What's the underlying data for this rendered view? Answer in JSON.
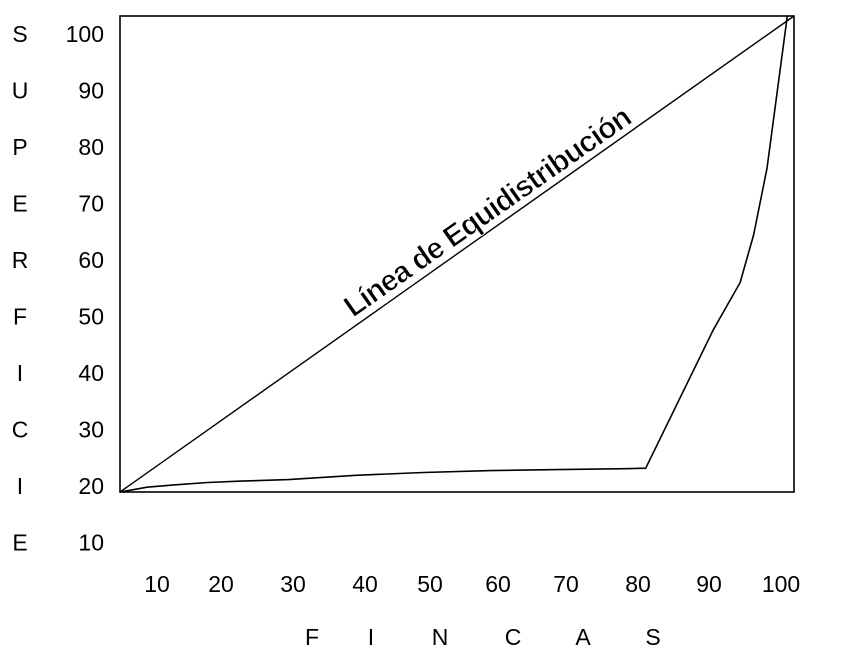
{
  "chart_data": {
    "type": "line",
    "title": "",
    "ylabel": "SUPERFICIE",
    "xlabel": "FINCAS",
    "ylabel_letters": [
      "S",
      "U",
      "P",
      "E",
      "R",
      "F",
      "I",
      "C",
      "I",
      "E"
    ],
    "xlabel_letters": [
      "F",
      "I",
      "N",
      "C",
      "A",
      "S"
    ],
    "y_ticks": [
      "100",
      "90",
      "80",
      "70",
      "60",
      "50",
      "40",
      "30",
      "20",
      "10"
    ],
    "x_ticks": [
      "10",
      "20",
      "30",
      "40",
      "50",
      "60",
      "70",
      "80",
      "90",
      "100"
    ],
    "annotation": "Línea de Equidistribución",
    "series": [
      {
        "name": "Línea de Equidistribución",
        "x": [
          0,
          100
        ],
        "y": [
          0,
          100
        ]
      },
      {
        "x": [
          0,
          4,
          8,
          13,
          18,
          25,
          35,
          45,
          55,
          65,
          75,
          78,
          88,
          90,
          92,
          94,
          96,
          99
        ],
        "y": [
          0,
          1.0,
          1.5,
          2.0,
          2.3,
          2.6,
          3.5,
          4.1,
          4.5,
          4.7,
          4.9,
          5.0,
          34,
          39,
          44,
          54,
          68,
          100
        ]
      }
    ],
    "colors": {
      "line": "#000000",
      "frame": "#000000",
      "background": "#ffffff"
    },
    "grid": false,
    "legend": "none"
  }
}
